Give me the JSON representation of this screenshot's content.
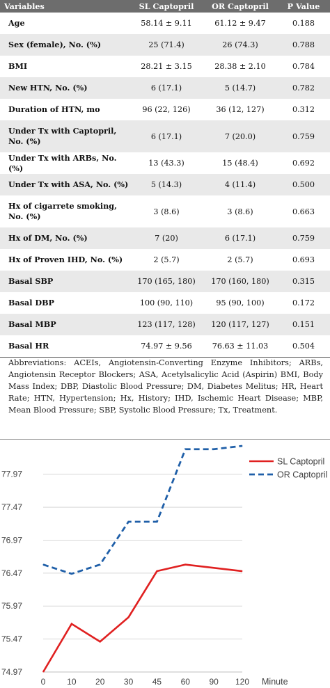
{
  "table": {
    "headers": [
      "Variables",
      "SL Captopril",
      "OR Captopril",
      "P Value"
    ],
    "rows": [
      {
        "label": "Age",
        "sl": "58.14 ± 9.11",
        "or": "61.12 ± 9.47",
        "p": "0.188"
      },
      {
        "label": "Sex (female), No. (%)",
        "sl": "25 (71.4)",
        "or": "26 (74.3)",
        "p": "0.788"
      },
      {
        "label": "BMI",
        "sl": "28.21 ± 3.15",
        "or": "28.38 ± 2.10",
        "p": "0.784"
      },
      {
        "label": "New HTN, No. (%)",
        "sl": "6 (17.1)",
        "or": "5 (14.7)",
        "p": "0.782"
      },
      {
        "label": "Duration of HTN, mo",
        "sl": "96 (22, 126)",
        "or": "36 (12, 127)",
        "p": "0.312"
      },
      {
        "label": "Under Tx with Captopril, No. (%)",
        "sl": "6 (17.1)",
        "or": "7 (20.0)",
        "p": "0.759"
      },
      {
        "label": "Under Tx with ARBs, No. (%)",
        "sl": "13 (43.3)",
        "or": "15 (48.4)",
        "p": "0.692"
      },
      {
        "label": "Under Tx with ASA, No. (%)",
        "sl": "5 (14.3)",
        "or": "4 (11.4)",
        "p": "0.500"
      },
      {
        "label": "Hx of cigarrete smoking, No. (%)",
        "sl": "3 (8.6)",
        "or": "3 (8.6)",
        "p": "0.663"
      },
      {
        "label": "Hx of DM, No. (%)",
        "sl": "7 (20)",
        "or": "6 (17.1)",
        "p": "0.759"
      },
      {
        "label": "Hx of Proven IHD, No. (%)",
        "sl": "2 (5.7)",
        "or": "2 (5.7)",
        "p": "0.693"
      },
      {
        "label": "Basal SBP",
        "sl": "170 (165, 180)",
        "or": "170 (160, 180)",
        "p": "0.315"
      },
      {
        "label": "Basal DBP",
        "sl": "100 (90, 110)",
        "or": "95 (90, 100)",
        "p": "0.172"
      },
      {
        "label": "Basal MBP",
        "sl": "123 (117, 128)",
        "or": "120 (117, 127)",
        "p": "0.151"
      },
      {
        "label": "Basal HR",
        "sl": "74.97 ± 9.56",
        "or": "76.63 ± 11.03",
        "p": "0.504"
      }
    ]
  },
  "abbreviations": "Abbreviations: ACEIs, Angiotensin-Converting Enzyme Inhibitors; ARBs, Angiotensin Receptor Blockers; ASA, Acetylsalicylic Acid (Aspirin) BMI, Body Mass Index; DBP, Diastolic Blood Pressure; DM, Diabetes Melitus; HR, Heart Rate; HTN, Hypertension; Hx, History; IHD, Ischemic Heart Disease; MBP, Mean Blood Pressure; SBP, Systolic Blood Pressure; Tx, Treatment.",
  "chart_data": {
    "type": "line",
    "title": "",
    "xlabel": "Minute",
    "ylabel": "",
    "categories": [
      "0",
      "10",
      "20",
      "30",
      "45",
      "60",
      "90",
      "120"
    ],
    "y_ticks": [
      "74.97",
      "75.47",
      "75.97",
      "76.47",
      "76.97",
      "77.47",
      "77.97"
    ],
    "ylim": [
      74.97,
      78.4
    ],
    "grid": "horizontal",
    "legend_position": "top-right",
    "series": [
      {
        "name": "SL Captopril",
        "color": "#e02020",
        "style": "solid",
        "values": [
          74.97,
          75.7,
          75.43,
          75.8,
          76.5,
          76.6,
          76.55,
          76.5
        ]
      },
      {
        "name": "OR Captopril",
        "color": "#1f5fa8",
        "style": "dashed",
        "values": [
          76.6,
          76.46,
          76.6,
          77.25,
          77.25,
          78.35,
          78.35,
          78.4
        ]
      }
    ]
  }
}
